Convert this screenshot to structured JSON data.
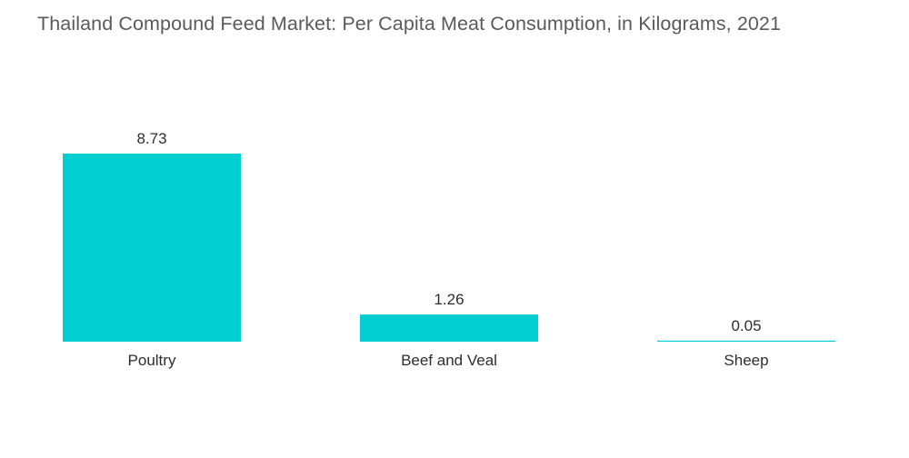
{
  "chart_data": {
    "type": "bar",
    "title": "Thailand Compound Feed Market: Per Capita Meat Consumption, in Kilograms, 2021",
    "categories": [
      "Poultry",
      "Beef and Veal",
      "Sheep"
    ],
    "values": [
      8.73,
      1.26,
      0.05
    ],
    "value_labels": [
      "8.73",
      "1.26",
      "0.05"
    ],
    "xlabel": "",
    "ylabel": "",
    "ylim": [
      0,
      8.73
    ],
    "grid": false,
    "legend": "none",
    "bar_color": "#00CED1"
  }
}
